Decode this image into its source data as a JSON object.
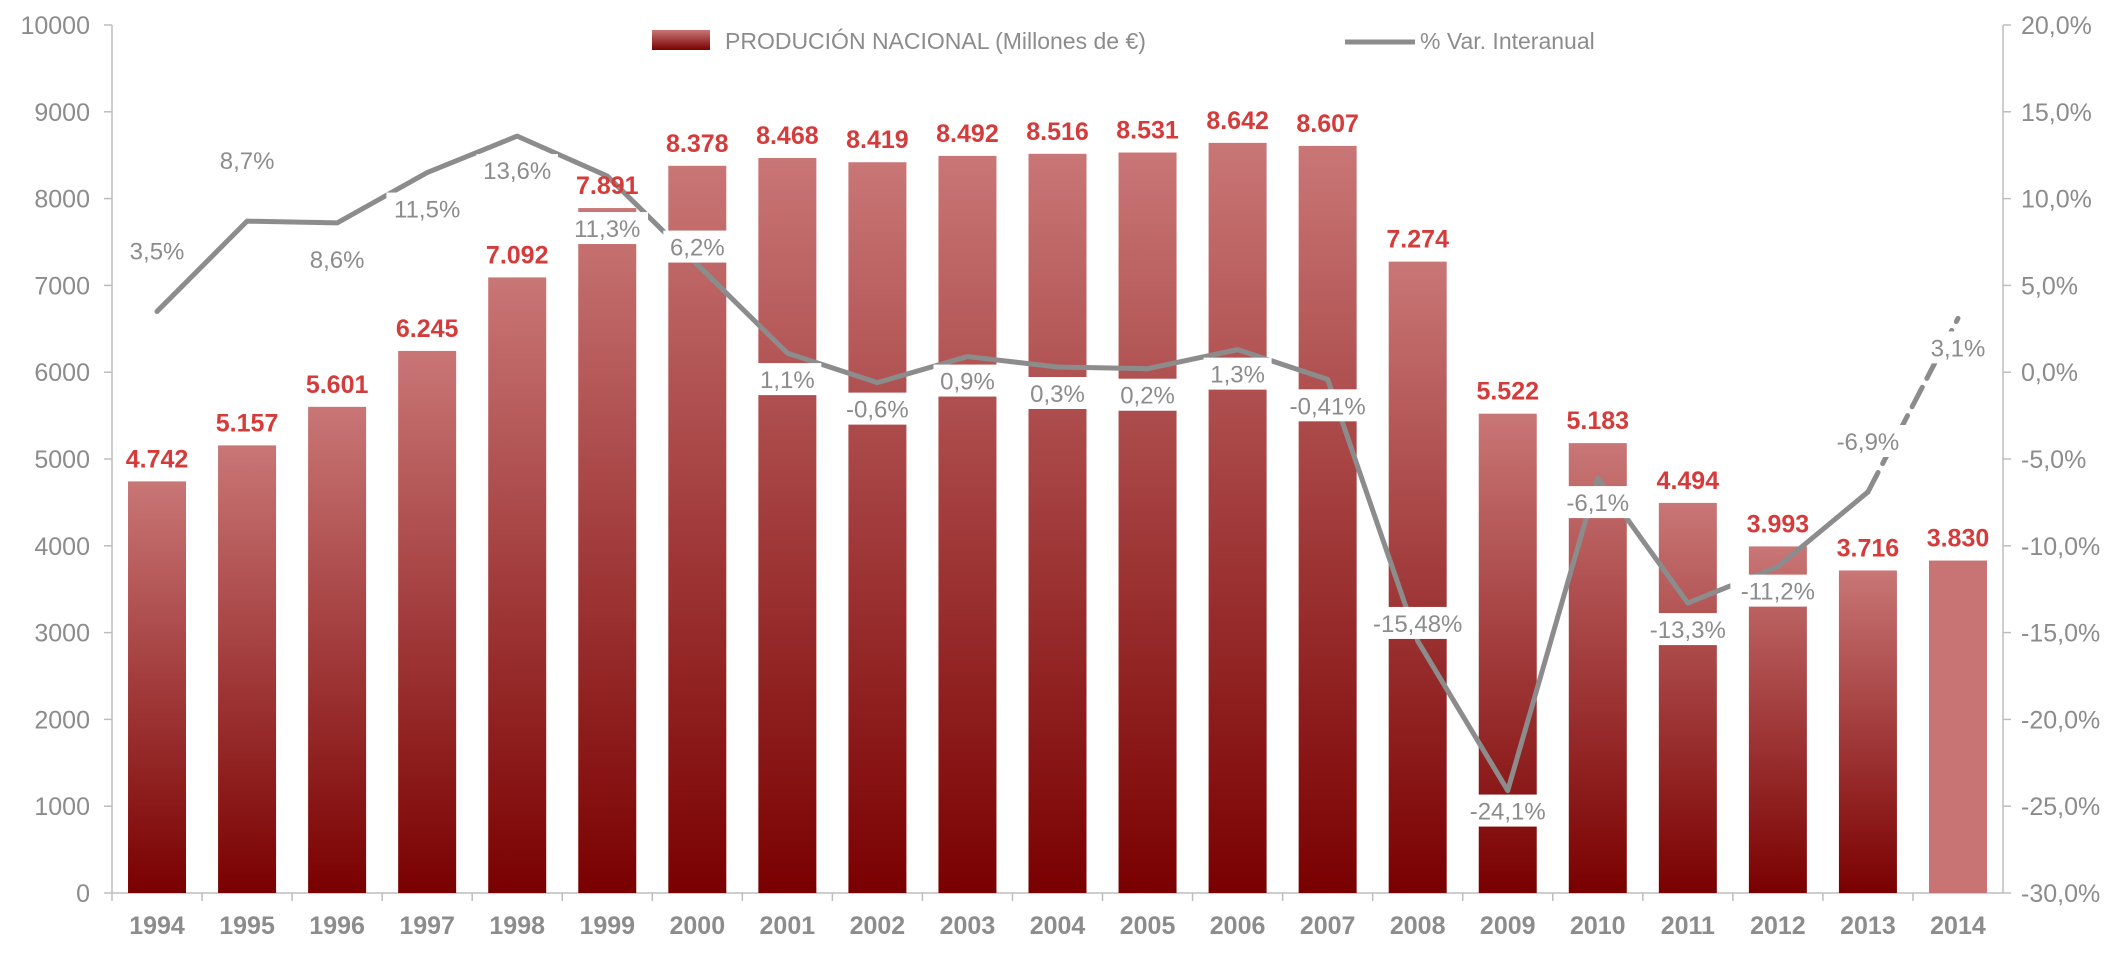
{
  "chart_data": {
    "type": "bar",
    "categories": [
      "1994",
      "1995",
      "1996",
      "1997",
      "1998",
      "1999",
      "2000",
      "2001",
      "2002",
      "2003",
      "2004",
      "2005",
      "2006",
      "2007",
      "2008",
      "2009",
      "2010",
      "2011",
      "2012",
      "2013",
      "2014"
    ],
    "series": [
      {
        "name": "PRODUCIÓN NACIONAL  (Millones de €)",
        "type": "bar",
        "axis": "left",
        "values": [
          4742,
          5157,
          5601,
          6245,
          7092,
          7891,
          8378,
          8468,
          8419,
          8492,
          8516,
          8531,
          8642,
          8607,
          7274,
          5522,
          5183,
          4494,
          3993,
          3716,
          3830
        ],
        "labels": [
          "4.742",
          "5.157",
          "5.601",
          "6.245",
          "7.092",
          "7.891",
          "8.378",
          "8.468",
          "8.419",
          "8.492",
          "8.516",
          "8.531",
          "8.642",
          "8.607",
          "7.274",
          "5.522",
          "5.183",
          "4.494",
          "3.993",
          "3.716",
          "3.830"
        ]
      },
      {
        "name": "% Var. Interanual",
        "type": "line",
        "axis": "right",
        "values": [
          3.5,
          8.7,
          8.6,
          11.5,
          13.6,
          11.3,
          6.2,
          1.1,
          -0.6,
          0.9,
          0.3,
          0.2,
          1.3,
          -0.41,
          -15.48,
          -24.1,
          -6.1,
          -13.3,
          -11.2,
          -6.9,
          3.1
        ],
        "labels": [
          "3,5%",
          "8,7%",
          "8,6%",
          "11,5%",
          "13,6%",
          "11,3%",
          "6,2%",
          "1,1%",
          "-0,6%",
          "0,9%",
          "0,3%",
          "0,2%",
          "1,3%",
          "-0,41%",
          "-15,48%",
          "-24,1%",
          "-6,1%",
          "-13,3%",
          "-11,2%",
          "-6,9%",
          "3,1%"
        ]
      }
    ],
    "ylim_left": [
      0,
      10000
    ],
    "ylim_right": [
      -30,
      20
    ],
    "yticks_left": [
      "0",
      "1000",
      "2000",
      "3000",
      "4000",
      "5000",
      "6000",
      "7000",
      "8000",
      "9000",
      "10000"
    ],
    "yticks_right": [
      "-30,0%",
      "-25,0%",
      "-20,0%",
      "-15,0%",
      "-10,0%",
      "-5,0%",
      "0,0%",
      "5,0%",
      "10,0%",
      "15,0%",
      "20,0%"
    ],
    "legend_position": "top-center",
    "grid": false,
    "colors": {
      "bar_top": "#c97676",
      "bar_bottom": "#7a0000",
      "bar_last": "#c87474",
      "line": "#8c8c8c",
      "bar_label": "#d63b3b",
      "axis_text": "#8c8c8c"
    }
  }
}
